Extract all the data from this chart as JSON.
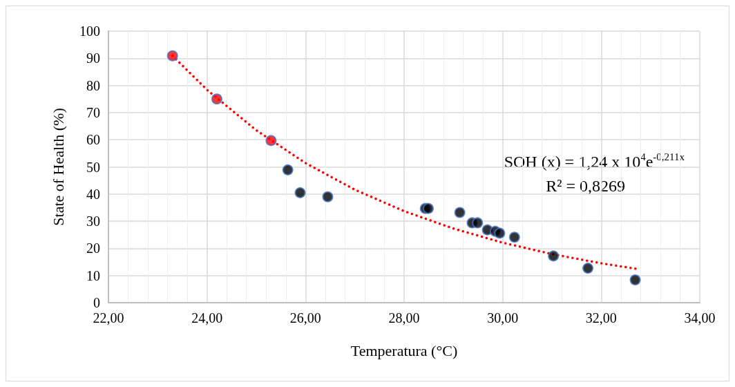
{
  "chart_data": {
    "type": "scatter",
    "xlabel": "Temperatura (°C)",
    "ylabel": "State of Health (%)",
    "xlim": [
      22,
      34
    ],
    "xticks": [
      {
        "value": 22,
        "label": "22,00"
      },
      {
        "value": 24,
        "label": "24,00"
      },
      {
        "value": 26,
        "label": "26,00"
      },
      {
        "value": 28,
        "label": "28,00"
      },
      {
        "value": 30,
        "label": "30,00"
      },
      {
        "value": 32,
        "label": "32,00"
      },
      {
        "value": 34,
        "label": "34,00"
      }
    ],
    "ylim": [
      0,
      100
    ],
    "yticks": [
      0,
      10,
      20,
      30,
      40,
      50,
      60,
      70,
      80,
      90,
      100
    ],
    "grid": true,
    "marker": "circle",
    "annotations": [
      "SOH (x) = 1,24 x 10$^{4}$e$^{-0,211x}$",
      "R² = 0,8269"
    ],
    "series": [
      {
        "type": "scatter",
        "x": [
          23.3,
          24.2,
          25.3,
          25.64,
          25.89,
          26.45,
          28.43,
          28.49,
          29.13,
          29.38,
          29.49,
          29.69,
          29.85,
          29.94,
          30.24,
          31.03,
          31.73,
          32.69
        ],
        "values": [
          90.9,
          75,
          59.7,
          48.9,
          40.5,
          39,
          34.7,
          34.7,
          33.2,
          29.4,
          29.4,
          26.8,
          26.3,
          25.6,
          24.1,
          17.2,
          12.7,
          8.4
        ],
        "colors": [
          "#ff0000",
          "#ff0000",
          "#ff0000",
          "#000000",
          "#000000",
          "#000000",
          "#000000",
          "#000000",
          "#000000",
          "#000000",
          "#000000",
          "#000000",
          "#000000",
          "#000000",
          "#000000",
          "#000000",
          "#000000",
          "#000000"
        ]
      },
      {
        "type": "line",
        "color": "#ff0000",
        "line_style": "dotted",
        "marker": "none",
        "x": [
          23.3,
          24,
          25,
          26,
          27,
          28,
          29,
          30,
          31,
          32,
          32.7
        ],
        "values": [
          90.9,
          78.4,
          63.5,
          51.4,
          41.6,
          33.7,
          27.3,
          22.1,
          17.9,
          14.5,
          12.5
        ]
      }
    ]
  }
}
